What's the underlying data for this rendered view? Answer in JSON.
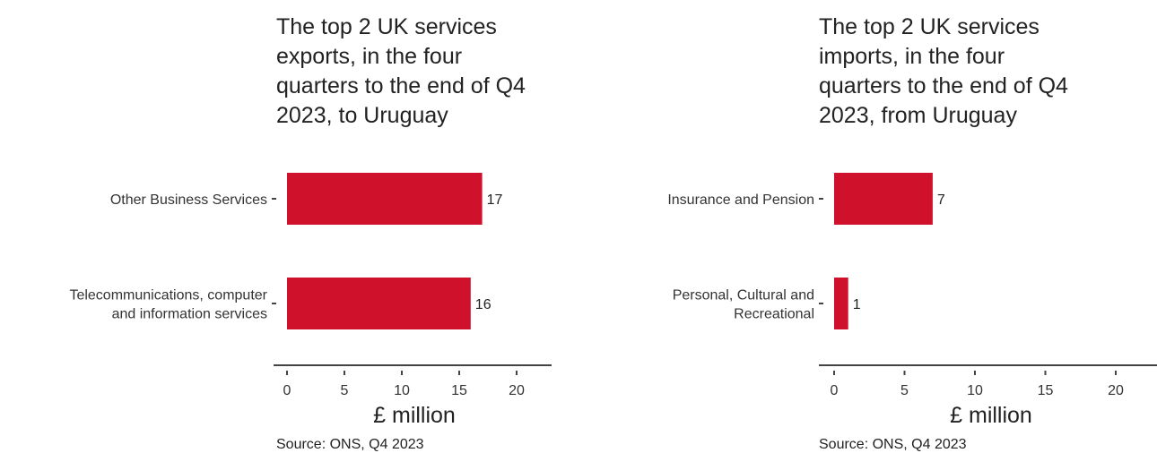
{
  "chart_data": [
    {
      "type": "bar",
      "orientation": "horizontal",
      "title_lines": [
        "The top 2 UK services",
        "exports, in the four",
        "quarters to the end of Q4",
        "2023, to Uruguay"
      ],
      "categories": [
        [
          "Other Business Services"
        ],
        [
          "Telecommunications, computer",
          "and information services"
        ]
      ],
      "values": [
        17,
        16
      ],
      "data_labels": [
        "17",
        "16"
      ],
      "xlabel": "£ million",
      "ylabel": "",
      "xlim": [
        0,
        23
      ],
      "xticks": [
        "0",
        "5",
        "10",
        "15",
        "20"
      ],
      "bar_color": "#d0112b",
      "grid": false,
      "source": "Source: ONS, Q4 2023"
    },
    {
      "type": "bar",
      "orientation": "horizontal",
      "title_lines": [
        "The top 2 UK services",
        "imports, in the four",
        "quarters to the end of Q4",
        "2023, from Uruguay"
      ],
      "categories": [
        [
          "Insurance and Pension"
        ],
        [
          "Personal, Cultural and",
          "Recreational"
        ]
      ],
      "values": [
        7,
        1
      ],
      "data_labels": [
        "7",
        "1"
      ],
      "xlabel": "£ million",
      "ylabel": "",
      "xlim": [
        0,
        23
      ],
      "xticks": [
        "0",
        "5",
        "10",
        "15",
        "20"
      ],
      "bar_color": "#d0112b",
      "grid": false,
      "source": "Source: ONS, Q4 2023"
    }
  ]
}
